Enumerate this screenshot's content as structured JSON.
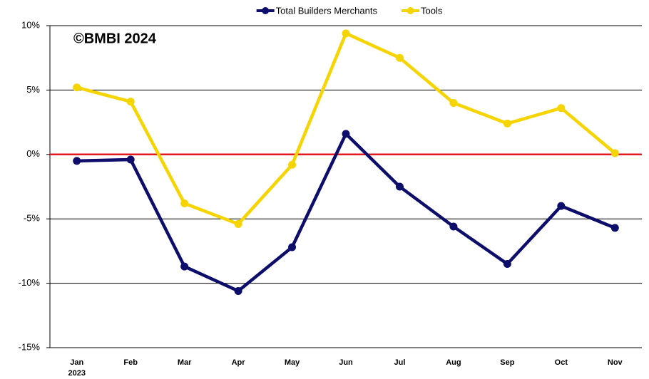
{
  "chart_data": {
    "type": "line",
    "annotation": "©BMBI 2024",
    "categories": [
      "Jan",
      "Feb",
      "Mar",
      "Apr",
      "May",
      "Jun",
      "Jul",
      "Aug",
      "Sep",
      "Oct",
      "Nov"
    ],
    "year_label": "2023",
    "series": [
      {
        "name": "Total Builders Merchants",
        "color": "#0d0d6b",
        "values": [
          -0.5,
          -0.4,
          -8.7,
          -10.6,
          -7.2,
          1.6,
          -2.5,
          -5.6,
          -8.5,
          -4.0,
          -5.7
        ]
      },
      {
        "name": "Tools",
        "color": "#f5d400",
        "values": [
          5.2,
          4.1,
          -3.8,
          -5.4,
          -0.8,
          9.4,
          7.5,
          4.0,
          2.4,
          3.6,
          0.1
        ]
      }
    ],
    "ylim": [
      -15,
      10
    ],
    "yticks": [
      {
        "value": -15,
        "label": "-15%"
      },
      {
        "value": -10,
        "label": "-10%"
      },
      {
        "value": -5,
        "label": "-5%"
      },
      {
        "value": 0,
        "label": "0%"
      },
      {
        "value": 5,
        "label": "5%"
      },
      {
        "value": 10,
        "label": "10%"
      }
    ],
    "grid": true,
    "reference_line": {
      "value": 0,
      "color": "#e31a1c"
    },
    "legend": "top"
  }
}
